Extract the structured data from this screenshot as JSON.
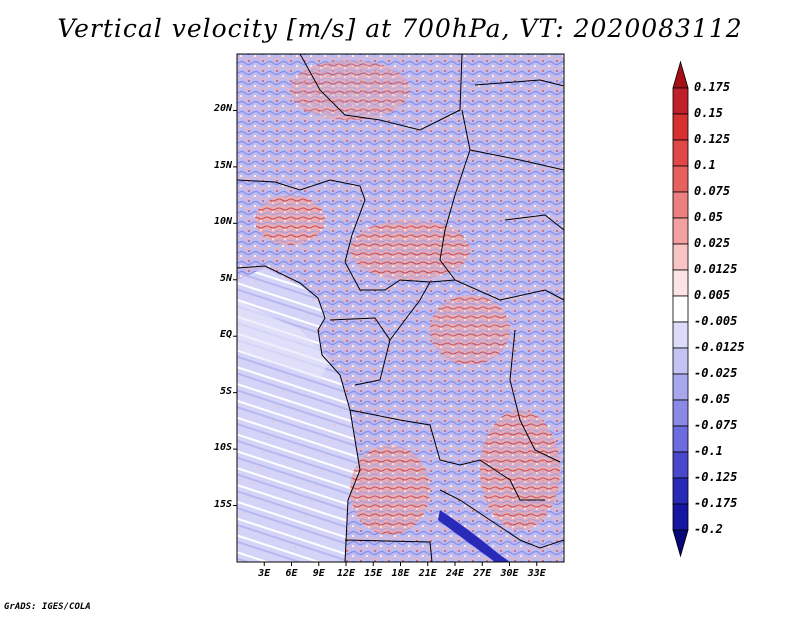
{
  "title": "Vertical velocity [m/s] at 700hPa, VT: 2020083112",
  "credit": "GrADS: IGES/COLA",
  "map": {
    "region": "Central Africa",
    "lat_range": [
      -20,
      25
    ],
    "lon_range": [
      0,
      36
    ],
    "lat_labels": [
      {
        "lat": 20,
        "text": "20N"
      },
      {
        "lat": 15,
        "text": "15N"
      },
      {
        "lat": 10,
        "text": "10N"
      },
      {
        "lat": 5,
        "text": "5N"
      },
      {
        "lat": 0,
        "text": "EQ"
      },
      {
        "lat": -5,
        "text": "5S"
      },
      {
        "lat": -10,
        "text": "10S"
      },
      {
        "lat": -15,
        "text": "15S"
      }
    ],
    "lon_labels": [
      {
        "lon": 3,
        "text": "3E"
      },
      {
        "lon": 6,
        "text": "6E"
      },
      {
        "lon": 9,
        "text": "9E"
      },
      {
        "lon": 12,
        "text": "12E"
      },
      {
        "lon": 15,
        "text": "15E"
      },
      {
        "lon": 18,
        "text": "18E"
      },
      {
        "lon": 21,
        "text": "21E"
      },
      {
        "lon": 24,
        "text": "24E"
      },
      {
        "lon": 27,
        "text": "27E"
      },
      {
        "lon": 30,
        "text": "30E"
      },
      {
        "lon": 33,
        "text": "33E"
      }
    ]
  },
  "colorbar": {
    "labels": [
      "0.175",
      "0.15",
      "0.125",
      "0.1",
      "0.075",
      "0.05",
      "0.025",
      "0.0125",
      "0.005",
      "-0.005",
      "-0.0125",
      "-0.025",
      "-0.05",
      "-0.075",
      "-0.1",
      "-0.125",
      "-0.175",
      "-0.2"
    ],
    "colors": [
      "#a50f15",
      "#c0202a",
      "#d73030",
      "#e04848",
      "#e66060",
      "#ec8080",
      "#f3a0a0",
      "#f8c4c4",
      "#fde4e4",
      "#ffffff",
      "#dcdcfa",
      "#c4c4f4",
      "#a8a8ee",
      "#8a8ae6",
      "#6c6cde",
      "#4848cc",
      "#2a2ab8",
      "#1616a0",
      "#08087a"
    ]
  }
}
